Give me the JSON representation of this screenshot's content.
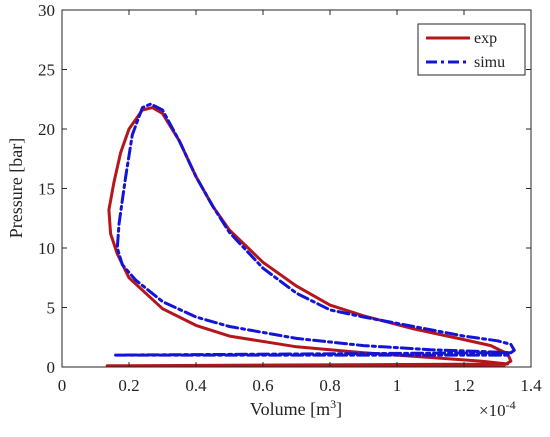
{
  "chart_data": {
    "type": "line",
    "title": "",
    "xlabel_main": "Volume [m",
    "xlabel_exp": "3",
    "xlabel_close": "]",
    "ylabel": "Pressure [bar]",
    "x_multiplier": "×10",
    "x_multiplier_exp": "-4",
    "xlim": [
      0,
      1.4
    ],
    "ylim": [
      0,
      30
    ],
    "xticks": [
      0,
      0.2,
      0.4,
      0.6,
      0.8,
      1,
      1.2,
      1.4
    ],
    "xtick_labels": [
      "0",
      "0.2",
      "0.4",
      "0.6",
      "0.8",
      "1",
      "1.2",
      "1.4"
    ],
    "yticks": [
      0,
      5,
      10,
      15,
      20,
      25,
      30
    ],
    "ytick_labels": [
      "0",
      "5",
      "10",
      "15",
      "20",
      "25",
      "30"
    ],
    "grid": false,
    "legend_position": "top-right",
    "series": [
      {
        "name": "exp",
        "color": "#b5161b",
        "style": "solid",
        "points": [
          [
            0.135,
            0.1
          ],
          [
            1.26,
            0.1
          ],
          [
            1.32,
            0.15
          ],
          [
            1.34,
            0.5
          ],
          [
            1.33,
            1.1
          ],
          [
            1.28,
            1.8
          ],
          [
            1.2,
            2.3
          ],
          [
            1.05,
            3.2
          ],
          [
            0.9,
            4.3
          ],
          [
            0.8,
            5.2
          ],
          [
            0.7,
            6.8
          ],
          [
            0.6,
            8.8
          ],
          [
            0.5,
            11.5
          ],
          [
            0.45,
            13.5
          ],
          [
            0.4,
            16.0
          ],
          [
            0.35,
            19.0
          ],
          [
            0.3,
            21.3
          ],
          [
            0.27,
            21.8
          ],
          [
            0.24,
            21.6
          ],
          [
            0.2,
            20.0
          ],
          [
            0.175,
            18.0
          ],
          [
            0.155,
            15.5
          ],
          [
            0.14,
            13.2
          ],
          [
            0.145,
            11.2
          ],
          [
            0.165,
            9.5
          ],
          [
            0.2,
            7.5
          ],
          [
            0.3,
            4.9
          ],
          [
            0.4,
            3.5
          ],
          [
            0.5,
            2.6
          ],
          [
            0.7,
            1.7
          ],
          [
            0.9,
            1.2
          ],
          [
            1.1,
            0.8
          ],
          [
            1.25,
            0.5
          ],
          [
            1.33,
            0.25
          ]
        ]
      },
      {
        "name": "simu",
        "color": "#1414d6",
        "style": "dashdot",
        "points": [
          [
            0.16,
            1.0
          ],
          [
            1.33,
            1.0
          ],
          [
            1.35,
            1.4
          ],
          [
            1.34,
            1.9
          ],
          [
            1.3,
            2.2
          ],
          [
            1.2,
            2.6
          ],
          [
            1.05,
            3.4
          ],
          [
            0.9,
            4.2
          ],
          [
            0.8,
            4.8
          ],
          [
            0.7,
            6.2
          ],
          [
            0.6,
            8.3
          ],
          [
            0.5,
            11.3
          ],
          [
            0.45,
            13.5
          ],
          [
            0.4,
            16.0
          ],
          [
            0.35,
            19.0
          ],
          [
            0.3,
            21.6
          ],
          [
            0.265,
            22.1
          ],
          [
            0.24,
            21.8
          ],
          [
            0.21,
            19.5
          ],
          [
            0.19,
            16.0
          ],
          [
            0.18,
            14.0
          ],
          [
            0.17,
            12.0
          ],
          [
            0.165,
            10.0
          ],
          [
            0.18,
            8.6
          ],
          [
            0.22,
            7.3
          ],
          [
            0.3,
            5.5
          ],
          [
            0.4,
            4.2
          ],
          [
            0.5,
            3.4
          ],
          [
            0.7,
            2.4
          ],
          [
            0.9,
            1.8
          ],
          [
            1.1,
            1.45
          ],
          [
            1.25,
            1.3
          ],
          [
            1.34,
            1.2
          ]
        ]
      }
    ]
  }
}
